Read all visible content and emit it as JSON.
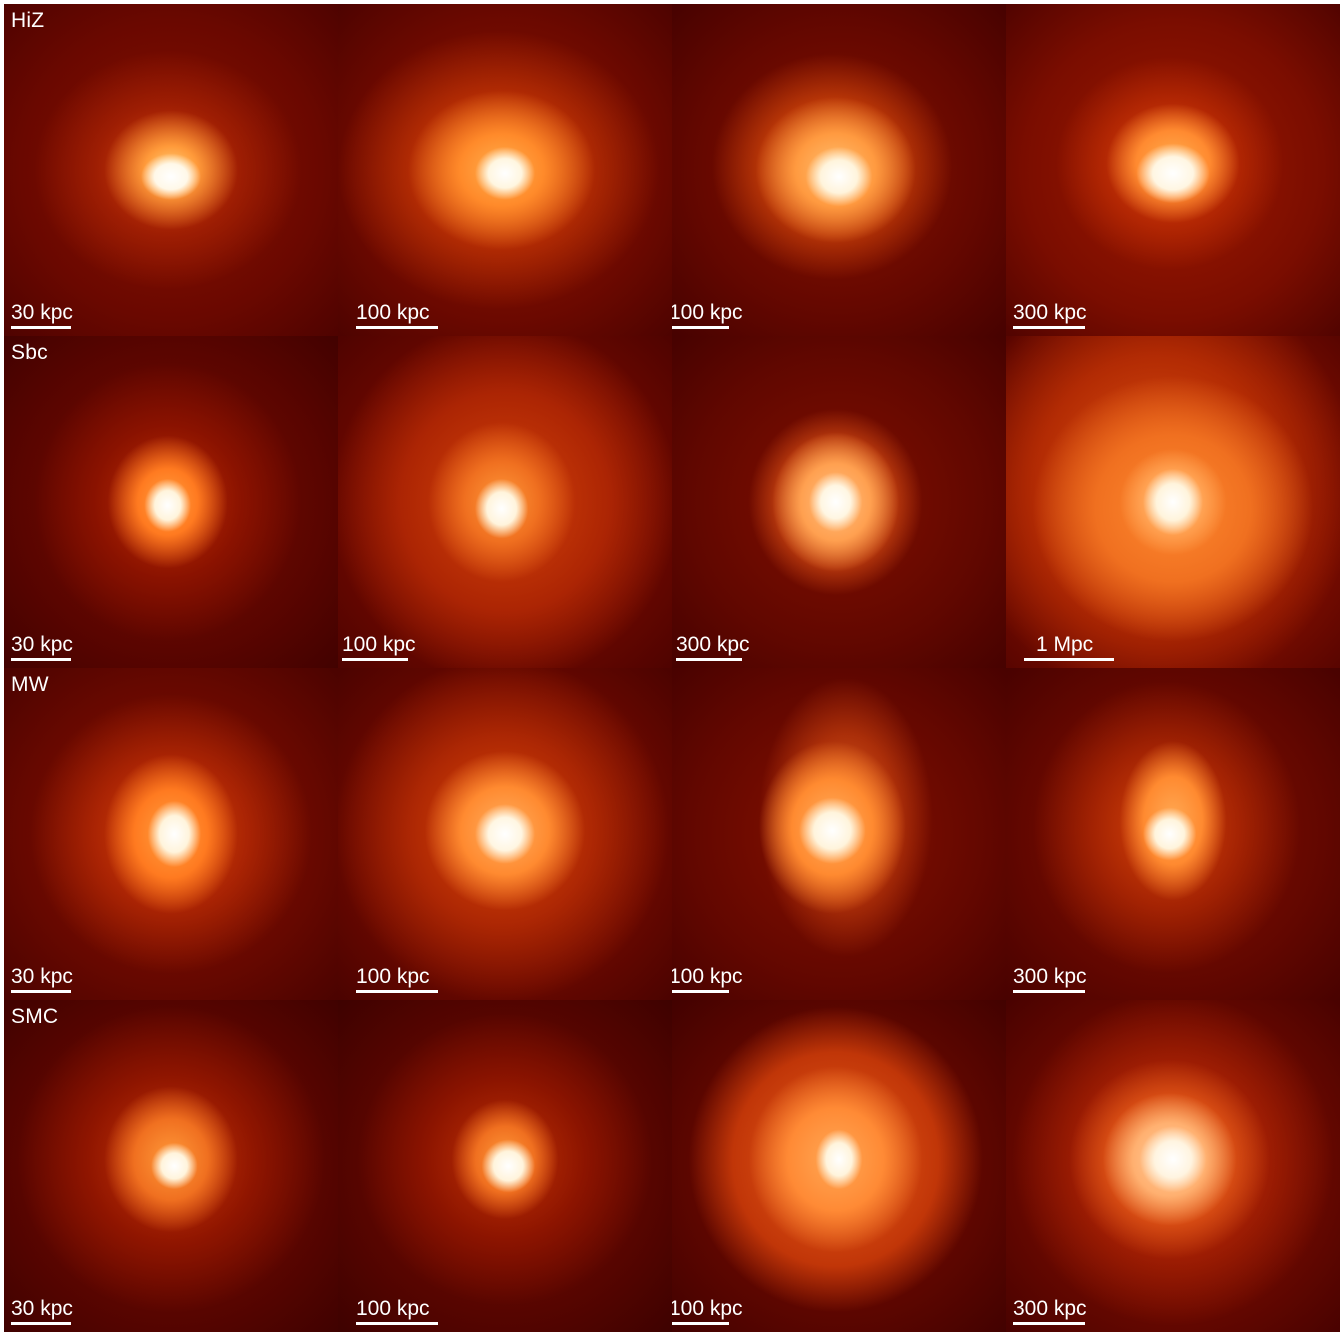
{
  "figure": {
    "rows": [
      {
        "label": "HiZ",
        "panels": [
          {
            "scale_label": "30 kpc"
          },
          {
            "scale_label": "100 kpc"
          },
          {
            "scale_label": "100 kpc"
          },
          {
            "scale_label": "300 kpc"
          }
        ]
      },
      {
        "label": "Sbc",
        "panels": [
          {
            "scale_label": "30 kpc"
          },
          {
            "scale_label": "100 kpc"
          },
          {
            "scale_label": "300 kpc"
          },
          {
            "scale_label": "1 Mpc"
          }
        ]
      },
      {
        "label": "MW",
        "panels": [
          {
            "scale_label": "30 kpc"
          },
          {
            "scale_label": "100 kpc"
          },
          {
            "scale_label": "100 kpc"
          },
          {
            "scale_label": "300 kpc"
          }
        ]
      },
      {
        "label": "SMC",
        "panels": [
          {
            "scale_label": "30 kpc"
          },
          {
            "scale_label": "100 kpc"
          },
          {
            "scale_label": "100 kpc"
          },
          {
            "scale_label": "300 kpc"
          }
        ]
      }
    ]
  }
}
